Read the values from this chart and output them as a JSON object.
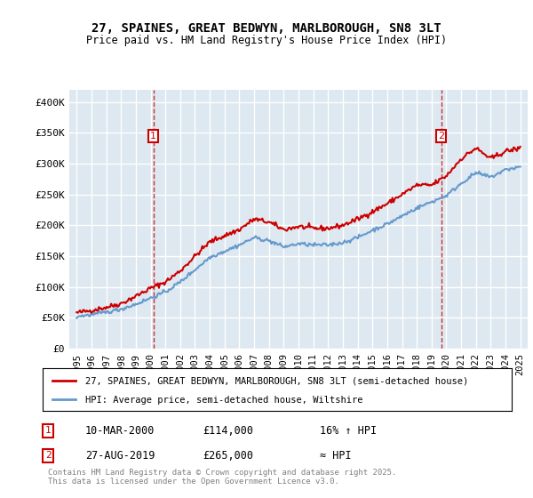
{
  "title": "27, SPAINES, GREAT BEDWYN, MARLBOROUGH, SN8 3LT",
  "subtitle": "Price paid vs. HM Land Registry's House Price Index (HPI)",
  "legend_line1": "27, SPAINES, GREAT BEDWYN, MARLBOROUGH, SN8 3LT (semi-detached house)",
  "legend_line2": "HPI: Average price, semi-detached house, Wiltshire",
  "footnote": "Contains HM Land Registry data © Crown copyright and database right 2025.\nThis data is licensed under the Open Government Licence v3.0.",
  "marker1_date": "10-MAR-2000",
  "marker1_price": "£114,000",
  "marker1_hpi": "16% ↑ HPI",
  "marker1_year": 2000.18,
  "marker1_value": 114000,
  "marker2_date": "27-AUG-2019",
  "marker2_price": "£265,000",
  "marker2_hpi": "≈ HPI",
  "marker2_year": 2019.65,
  "marker2_value": 265000,
  "red_color": "#cc0000",
  "blue_color": "#6699cc",
  "background_color": "#dde8f0",
  "plot_bg_color": "#dde8f0",
  "grid_color": "#ffffff",
  "ylim": [
    0,
    420000
  ],
  "yticks": [
    0,
    50000,
    100000,
    150000,
    200000,
    250000,
    300000,
    350000,
    400000
  ],
  "ytick_labels": [
    "£0",
    "£50K",
    "£100K",
    "£150K",
    "£200K",
    "£250K",
    "£300K",
    "£350K",
    "£400K"
  ],
  "xlim_start": 1994.5,
  "xlim_end": 2025.5
}
